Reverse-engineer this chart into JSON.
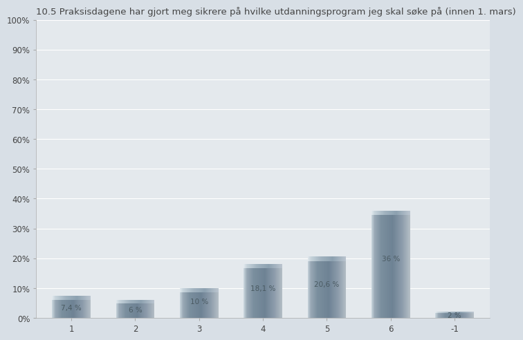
{
  "title": "10.5 Praksisdagene har gjort meg sikrere på hvilke utdanningsprogram jeg skal søke på (innen 1. mars)",
  "categories": [
    1,
    2,
    3,
    4,
    5,
    6,
    -1
  ],
  "values": [
    7.4,
    6.0,
    10.0,
    18.1,
    20.6,
    36.0,
    2.0
  ],
  "labels": [
    "7,4 %",
    "6 %",
    "10 %",
    "18,1 %",
    "20,6 %",
    "36 %",
    "2 %"
  ],
  "xlabels": [
    "1",
    "2",
    "3",
    "4",
    "5",
    "6",
    "-1"
  ],
  "ylim": [
    0,
    100
  ],
  "yticks": [
    0,
    10,
    20,
    30,
    40,
    50,
    60,
    70,
    80,
    90,
    100
  ],
  "ytick_labels": [
    "0%",
    "10%",
    "20%",
    "30%",
    "40%",
    "50%",
    "60%",
    "70%",
    "80%",
    "90%",
    "100%"
  ],
  "background_color": "#d8dfe6",
  "plot_bg_color": "#e4e9ed",
  "grid_color": "#ffffff",
  "text_color": "#444444",
  "label_color": "#4a5a62",
  "title_fontsize": 9.5,
  "label_fontsize": 7.5,
  "tick_fontsize": 8.5,
  "bar_width": 0.6
}
